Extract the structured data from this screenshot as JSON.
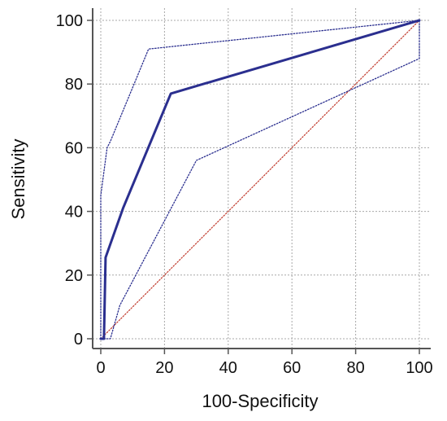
{
  "chart_data": {
    "type": "line",
    "title": "",
    "xlabel": "100-Specificity",
    "ylabel": "Sensitivity",
    "xlim": [
      0,
      100
    ],
    "ylim": [
      0,
      100
    ],
    "x_ticks": [
      0,
      20,
      40,
      60,
      80,
      100
    ],
    "y_ticks": [
      0,
      20,
      40,
      60,
      80,
      100
    ],
    "grid": true,
    "colors": {
      "roc": "#2b2f8f",
      "ci": "#2b2f8f",
      "diagonal": "#c0392b",
      "grid": "#a8a8a8",
      "axis": "#555555"
    },
    "series": [
      {
        "role": "roc",
        "points": [
          [
            0,
            0
          ],
          [
            1,
            0
          ],
          [
            1.5,
            25.5
          ],
          [
            7,
            41
          ],
          [
            22,
            77
          ],
          [
            100,
            100
          ]
        ]
      },
      {
        "role": "ci-upper",
        "points": [
          [
            0,
            0
          ],
          [
            0,
            45
          ],
          [
            2,
            60
          ],
          [
            3,
            62
          ],
          [
            15,
            91
          ],
          [
            100,
            100
          ]
        ]
      },
      {
        "role": "ci-lower",
        "points": [
          [
            1,
            0
          ],
          [
            3,
            0
          ],
          [
            6,
            10.5
          ],
          [
            30,
            56
          ],
          [
            100,
            88
          ],
          [
            100,
            100
          ]
        ]
      },
      {
        "role": "diagonal",
        "points": [
          [
            0,
            0
          ],
          [
            100,
            100
          ]
        ]
      }
    ]
  }
}
